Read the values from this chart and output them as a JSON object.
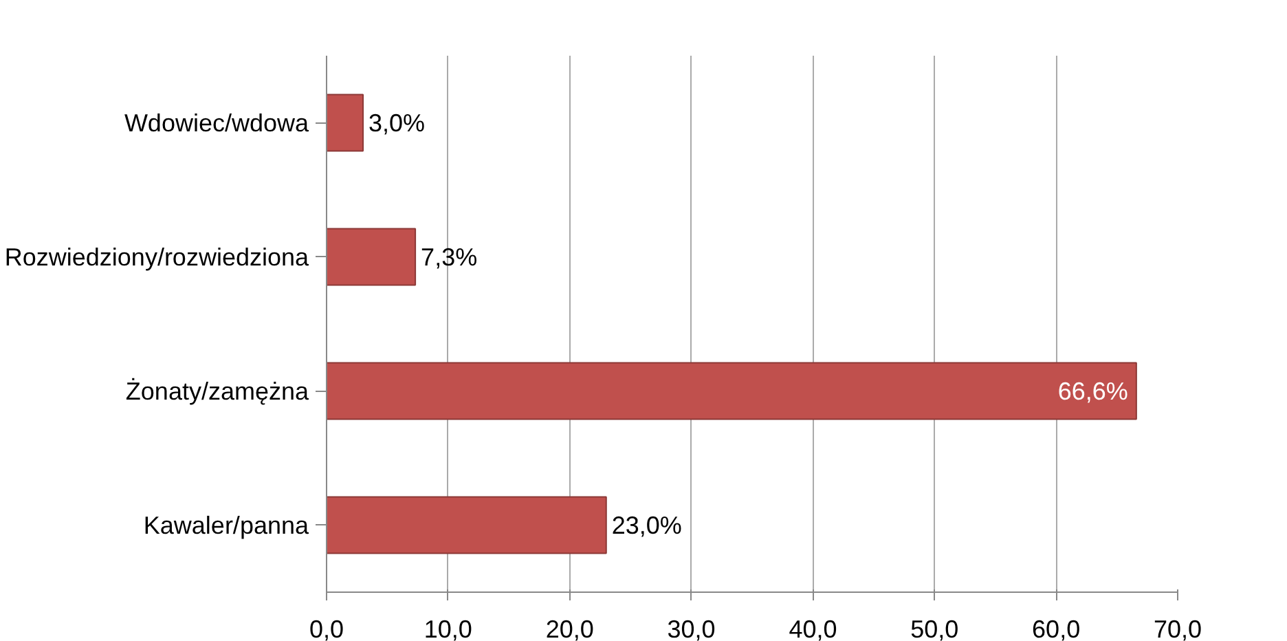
{
  "chart_data": {
    "type": "bar",
    "orientation": "horizontal",
    "categories": [
      "Wdowiec/wdowa",
      "Rozwiedziony/rozwiedziona",
      "Żonaty/zamężna",
      "Kawaler/panna"
    ],
    "values": [
      3.0,
      7.3,
      66.6,
      23.0
    ],
    "value_labels": [
      "3,0%",
      "7,3%",
      "66,6%",
      "23,0%"
    ],
    "color": "#c0504d",
    "xlim": [
      0,
      70
    ],
    "xticks": [
      {
        "value": 0,
        "label": "0,0"
      },
      {
        "value": 10,
        "label": "10,0"
      },
      {
        "value": 20,
        "label": "20,0"
      },
      {
        "value": 30,
        "label": "30,0"
      },
      {
        "value": 40,
        "label": "40,0"
      },
      {
        "value": 50,
        "label": "50,0"
      },
      {
        "value": 60,
        "label": "60,0"
      },
      {
        "value": 70,
        "label": "70,0"
      }
    ],
    "grid": "x"
  }
}
